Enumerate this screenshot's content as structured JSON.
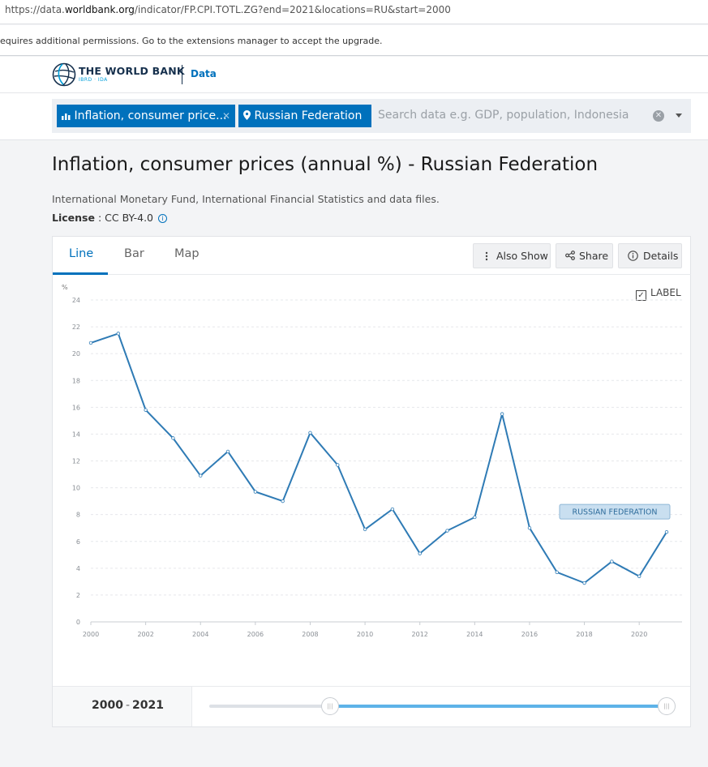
{
  "browser": {
    "url_prefix": "https://data.",
    "url_domain": "worldbank.org",
    "url_suffix": "/indicator/FP.CPI.TOTL.ZG?end=2021&locations=RU&start=2000"
  },
  "notice": "equires additional permissions. Go to the extensions manager to accept the upgrade.",
  "header": {
    "brand": "THE WORLD BANK",
    "brand_sub": "IBRD · IDA",
    "section": "Data"
  },
  "search": {
    "chip_indicator": "Inflation, consumer price...",
    "chip_location": "Russian Federation",
    "placeholder": "Search data e.g. GDP, population, Indonesia"
  },
  "page": {
    "title": "Inflation, consumer prices (annual %) - Russian Federation",
    "source": "International Monetary Fund, International Financial Statistics and data files.",
    "license_label": "License",
    "license_value": "CC BY-4.0"
  },
  "tabs": [
    "Line",
    "Bar",
    "Map"
  ],
  "actions": {
    "also_show": "Also Show",
    "share": "Share",
    "details": "Details"
  },
  "label_toggle": "LABEL",
  "series_label": "RUSSIAN FEDERATION",
  "range": {
    "start": "2000",
    "end": "2021"
  },
  "colors": {
    "accent": "#0071bc",
    "line": "#2f7bb5",
    "slider": "#5eb3e8"
  },
  "chart_data": {
    "type": "line",
    "ylabel": "%",
    "ylim": [
      0,
      24
    ],
    "xlim": [
      2000,
      2021
    ],
    "yticks": [
      0,
      2,
      4,
      6,
      8,
      10,
      12,
      14,
      16,
      18,
      20,
      22,
      24
    ],
    "xticks": [
      2000,
      2002,
      2004,
      2006,
      2008,
      2010,
      2012,
      2014,
      2016,
      2018,
      2020
    ],
    "grid": true,
    "x": [
      2000,
      2001,
      2002,
      2003,
      2004,
      2005,
      2006,
      2007,
      2008,
      2009,
      2010,
      2011,
      2012,
      2013,
      2014,
      2015,
      2016,
      2017,
      2018,
      2019,
      2020,
      2021
    ],
    "series": [
      {
        "name": "RUSSIAN FEDERATION",
        "values": [
          20.8,
          21.5,
          15.8,
          13.7,
          10.9,
          12.7,
          9.7,
          9.0,
          14.1,
          11.7,
          6.9,
          8.4,
          5.1,
          6.8,
          7.8,
          15.5,
          7.0,
          3.7,
          2.9,
          4.5,
          3.4,
          6.7
        ]
      }
    ]
  }
}
